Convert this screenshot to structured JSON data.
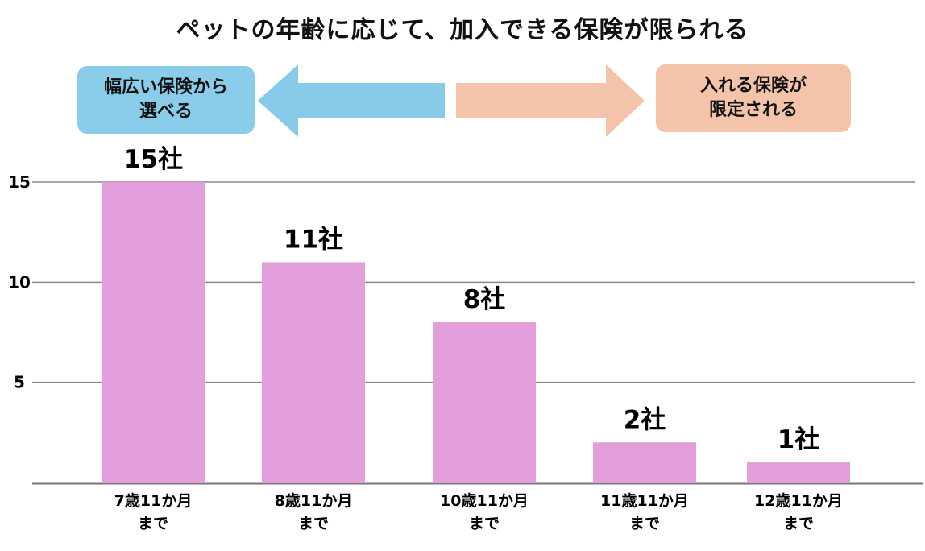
{
  "title": "ペットの年齢に応じて、加入できる保険が限られる",
  "annotations": {
    "left": "幅広い保険から\n選べる",
    "right": "入れる保険が\n限定される"
  },
  "colors": {
    "bar": "#E29EDB",
    "left_pill": "#89CDEA",
    "right_pill": "#F4C4AA",
    "left_arrow": "#87CBE8",
    "right_arrow": "#F4C4AA",
    "grid": "#8a8a8a"
  },
  "chart_data": {
    "type": "bar",
    "categories": [
      "7歳11か月\nまで",
      "8歳11か月\nまで",
      "10歳11か月\nまで",
      "11歳11か月\nまで",
      "12歳11か月\nまで"
    ],
    "values": [
      15,
      11,
      8,
      2,
      1
    ],
    "data_labels": [
      "15社",
      "11社",
      "8社",
      "2社",
      "1社"
    ],
    "yticks": [
      5,
      10,
      15
    ],
    "ylim": [
      0,
      15
    ],
    "grid": true,
    "legend": "none",
    "xlabel": "",
    "ylabel": ""
  }
}
